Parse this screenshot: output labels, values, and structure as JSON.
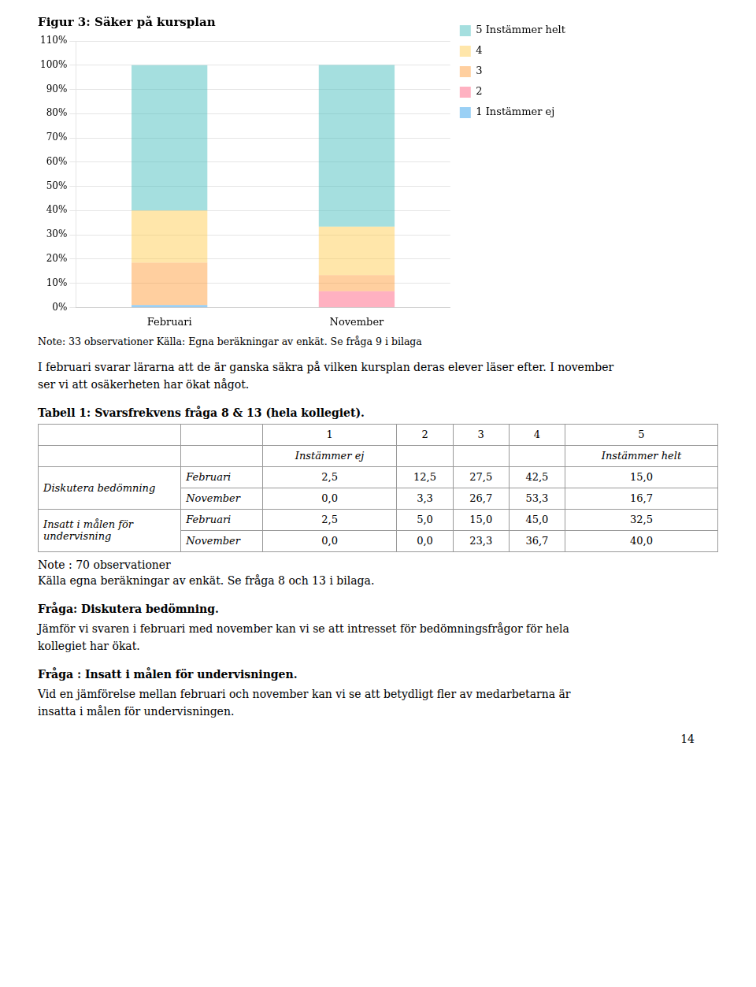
{
  "chart_data": [
    {
      "type": "bar",
      "title": "Figur 3: Säker på kursplan",
      "stacked": true,
      "categories": [
        "Februari",
        "November"
      ],
      "series": [
        {
          "name": "1 Instämmer ej",
          "values": [
            0.01,
            0.0
          ]
        },
        {
          "name": "2",
          "values": [
            0.0,
            0.067
          ]
        },
        {
          "name": "3",
          "values": [
            0.175,
            0.067
          ]
        },
        {
          "name": "4",
          "values": [
            0.215,
            0.2
          ]
        },
        {
          "name": "5 Instämmer helt",
          "values": [
            0.6,
            0.667
          ]
        }
      ],
      "ylim": [
        0,
        1.1
      ],
      "yticks": [
        {
          "value": 0,
          "label": "0%"
        },
        {
          "value": 0.1,
          "label": "10%"
        },
        {
          "value": 0.2,
          "label": "20%"
        },
        {
          "value": 0.3,
          "label": "30%"
        },
        {
          "value": 0.4,
          "label": "40%"
        },
        {
          "value": 0.5,
          "label": "50%"
        },
        {
          "value": 0.6,
          "label": "60%"
        },
        {
          "value": 0.7,
          "label": "70%"
        },
        {
          "value": 0.8,
          "label": "80%"
        },
        {
          "value": 0.9,
          "label": "90%"
        },
        {
          "value": 1.0,
          "label": "100%"
        },
        {
          "value": 1.1,
          "label": "110%"
        }
      ],
      "grid": true,
      "legend": "right",
      "note": "Note: 33 observationer     Källa: Egna beräkningar av enkät. Se fråga 9 i bilaga"
    },
    {
      "type": "table",
      "title": "Tabell 1: Svarsfrekvens fråga 8 & 13 (hela kollegiet).",
      "categories": [
        "1",
        "2",
        "3",
        "4",
        "5"
      ],
      "subheaders": [
        "Instämmer ej",
        null,
        null,
        null,
        "Instämmer helt"
      ],
      "rows": [
        {
          "group": "Diskutera bedömning",
          "name": "Februari",
          "values": [
            2.5,
            12.5,
            27.5,
            42.5,
            15.0
          ],
          "value_labels": [
            "2,5",
            "12,5",
            "27,5",
            "42,5",
            "15,0"
          ]
        },
        {
          "group": "Diskutera bedömning",
          "name": "November",
          "values": [
            0.0,
            3.3,
            26.7,
            53.3,
            16.7
          ],
          "value_labels": [
            "0,0",
            "3,3",
            "26,7",
            "53,3",
            "16,7"
          ]
        },
        {
          "group": "Insatt i målen för undervisning",
          "name": "Februari",
          "values": [
            2.5,
            5.0,
            15.0,
            45.0,
            32.5
          ],
          "value_labels": [
            "2,5",
            "5,0",
            "15,0",
            "45,0",
            "32,5"
          ]
        },
        {
          "group": "Insatt i målen för undervisning",
          "name": "November",
          "values": [
            0.0,
            0.0,
            23.3,
            36.7,
            40.0
          ],
          "value_labels": [
            "0,0",
            "0,0",
            "23,3",
            "36,7",
            "40,0"
          ]
        }
      ],
      "notes": [
        "Note : 70 observationer",
        "Källa egna beräkningar av enkät. Se fråga 8 och 13 i bilaga."
      ]
    }
  ],
  "body_text": "I februari svarar lärarna att de är ganska säkra på vilken kursplan deras elever läser efter. I november\nser vi att osäkerheten har ökat något.",
  "sections": [
    {
      "heading": "Fråga: Diskutera bedömning.",
      "text": "Jämför vi svaren i februari med november kan vi se att intresset för bedömningsfrågor för hela\nkollegiet har ökat."
    },
    {
      "heading": "Fråga : Insatt i målen för undervisningen.",
      "text": "Vid en jämförelse mellan februari och november kan vi se att betydligt fler av medarbetarna är\ninsatta i målen för undervisningen."
    }
  ],
  "page_number": "14"
}
